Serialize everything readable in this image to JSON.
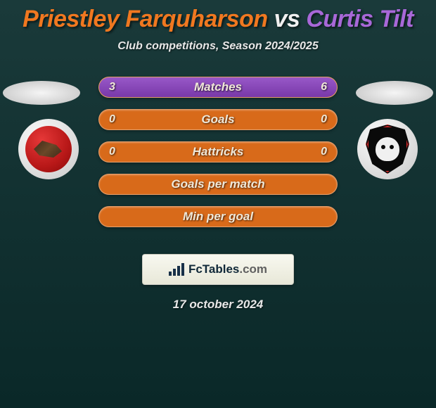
{
  "title": {
    "player1": "Priestley Farquharson",
    "vs": "vs",
    "player2": "Curtis Tilt",
    "color_player1": "#f07820",
    "color_vs": "#f0f0f0",
    "color_player2": "#a868d8"
  },
  "subtitle": "Club competitions, Season 2024/2025",
  "crest_left_name": "Walsall FC",
  "crest_right_name": "Salford City",
  "bars": {
    "bar_color_base": "#d86a1a",
    "bar_color_fill": "#7838a8",
    "rows": [
      {
        "label": "Matches",
        "left_val": "3",
        "right_val": "6",
        "left_pct": 33,
        "right_pct": 67
      },
      {
        "label": "Goals",
        "left_val": "0",
        "right_val": "0",
        "left_pct": 0,
        "right_pct": 0
      },
      {
        "label": "Hattricks",
        "left_val": "0",
        "right_val": "0",
        "left_pct": 0,
        "right_pct": 0
      },
      {
        "label": "Goals per match",
        "left_val": "",
        "right_val": "",
        "left_pct": 0,
        "right_pct": 0
      },
      {
        "label": "Min per goal",
        "left_val": "",
        "right_val": "",
        "left_pct": 0,
        "right_pct": 0
      }
    ]
  },
  "watermark": {
    "brand": "FcTables",
    "domain": ".com"
  },
  "date": "17 october 2024",
  "colors": {
    "bg_top": "#1a3a3a",
    "bg_bottom": "#0a2828",
    "text_light": "#e8e8e8",
    "bar_text": "#f0e8d8"
  }
}
